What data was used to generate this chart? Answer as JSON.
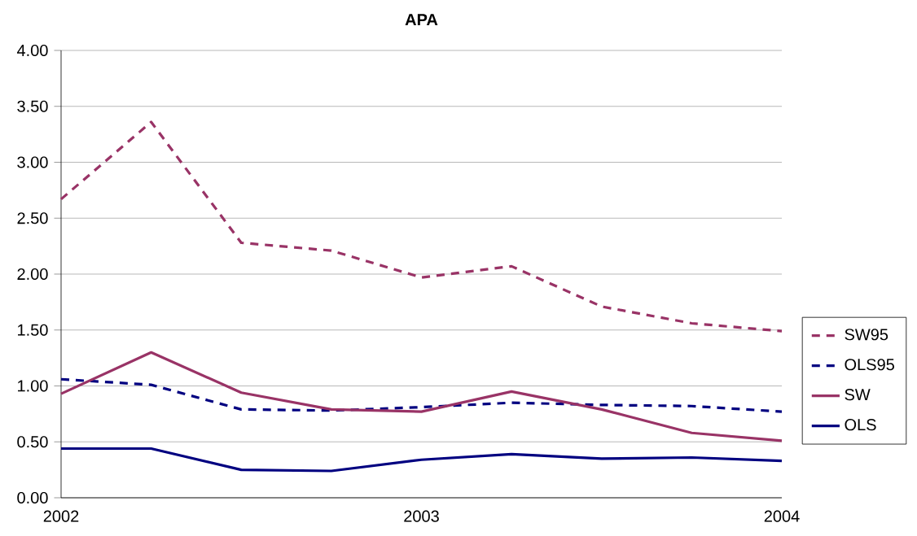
{
  "chart_data": {
    "type": "line",
    "title": "APA",
    "x": [
      2002,
      2002.25,
      2002.5,
      2002.75,
      2003,
      2003.25,
      2003.5,
      2003.75,
      2004
    ],
    "xlim": [
      2002,
      2004
    ],
    "xticks": [
      2002,
      2003,
      2004
    ],
    "ylim": [
      0,
      4
    ],
    "yticks": [
      {
        "value": 0,
        "label": "0.00"
      },
      {
        "value": 0.5,
        "label": "0.50"
      },
      {
        "value": 1,
        "label": "1.00"
      },
      {
        "value": 1.5,
        "label": "1.50"
      },
      {
        "value": 2,
        "label": "2.00"
      },
      {
        "value": 2.5,
        "label": "2.50"
      },
      {
        "value": 3,
        "label": "3.00"
      },
      {
        "value": 3.5,
        "label": "3.50"
      },
      {
        "value": 4,
        "label": "4.00"
      }
    ],
    "grid": "y",
    "legend": "right",
    "marker": "none",
    "series": [
      {
        "name": "SW95",
        "color": "#993366",
        "line_style": "dashed",
        "values": [
          2.67,
          3.36,
          2.28,
          2.21,
          1.97,
          2.07,
          1.71,
          1.56,
          1.49
        ]
      },
      {
        "name": "OLS95",
        "color": "#000080",
        "line_style": "dashed",
        "values": [
          1.06,
          1.01,
          0.79,
          0.78,
          0.81,
          0.85,
          0.83,
          0.82,
          0.77
        ]
      },
      {
        "name": "SW",
        "color": "#993366",
        "line_style": "solid",
        "values": [
          0.93,
          1.3,
          0.94,
          0.79,
          0.77,
          0.95,
          0.79,
          0.58,
          0.51
        ]
      },
      {
        "name": "OLS",
        "color": "#000080",
        "line_style": "solid",
        "values": [
          0.44,
          0.44,
          0.25,
          0.24,
          0.34,
          0.39,
          0.35,
          0.36,
          0.33
        ]
      }
    ]
  }
}
